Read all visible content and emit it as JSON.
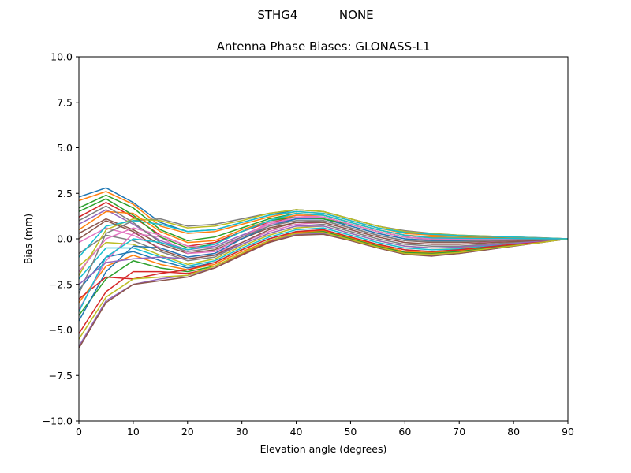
{
  "figure": {
    "suptitle": "STHG4           NONE"
  },
  "chart_data": {
    "type": "line",
    "title": "Antenna Phase Biases: GLONASS-L1",
    "xlabel": "Elevation angle (degrees)",
    "ylabel": "Bias (mm)",
    "xlim": [
      0,
      90
    ],
    "ylim": [
      -10,
      10
    ],
    "xticks": [
      0,
      10,
      20,
      30,
      40,
      50,
      60,
      70,
      80,
      90
    ],
    "yticks": [
      -10.0,
      -7.5,
      -5.0,
      -2.5,
      0.0,
      2.5,
      5.0,
      7.5,
      10.0
    ],
    "xtick_labels": [
      "0",
      "10",
      "20",
      "30",
      "40",
      "50",
      "60",
      "70",
      "80",
      "90"
    ],
    "ytick_labels": [
      "−10.0",
      "−7.5",
      "−5.0",
      "−2.5",
      "0.0",
      "2.5",
      "5.0",
      "7.5",
      "10.0"
    ],
    "grid": false,
    "x": [
      0,
      5,
      10,
      15,
      20,
      25,
      30,
      35,
      40,
      45,
      50,
      55,
      60,
      65,
      70,
      75,
      80,
      85,
      90
    ],
    "colors": [
      "#1f77b4",
      "#ff7f0e",
      "#2ca02c",
      "#d62728",
      "#9467bd",
      "#8c564b",
      "#e377c2",
      "#7f7f7f",
      "#bcbd22",
      "#17becf"
    ],
    "series": [
      {
        "values": [
          2.3,
          2.8,
          2.0,
          0.9,
          0.4,
          0.5,
          0.9,
          1.3,
          1.6,
          1.5,
          1.1,
          0.7,
          0.4,
          0.25,
          0.18,
          0.14,
          0.1,
          0.06,
          0.0
        ]
      },
      {
        "values": [
          2.1,
          2.6,
          1.9,
          0.7,
          0.3,
          0.4,
          0.8,
          1.2,
          1.5,
          1.4,
          1.0,
          0.6,
          0.3,
          0.2,
          0.15,
          0.12,
          0.08,
          0.05,
          0.0
        ]
      },
      {
        "values": [
          1.7,
          2.4,
          1.7,
          0.5,
          -0.1,
          0.1,
          0.6,
          1.1,
          1.4,
          1.3,
          0.9,
          0.5,
          0.2,
          0.1,
          0.08,
          0.06,
          0.05,
          0.03,
          0.0
        ]
      },
      {
        "values": [
          1.2,
          2.0,
          1.2,
          0.2,
          -0.4,
          -0.2,
          0.4,
          0.9,
          1.2,
          1.2,
          0.8,
          0.4,
          0.1,
          0.0,
          -0.02,
          -0.02,
          -0.01,
          0.0,
          0.0
        ]
      },
      {
        "values": [
          0.8,
          1.6,
          0.8,
          -0.1,
          -0.6,
          -0.4,
          0.2,
          0.8,
          1.1,
          1.1,
          0.7,
          0.3,
          0.0,
          -0.1,
          -0.1,
          -0.08,
          -0.05,
          -0.02,
          0.0
        ]
      },
      {
        "values": [
          0.3,
          1.1,
          0.5,
          -0.3,
          -0.8,
          -0.6,
          0.0,
          0.6,
          0.9,
          1.0,
          0.6,
          0.2,
          -0.1,
          -0.2,
          -0.2,
          -0.15,
          -0.1,
          -0.05,
          0.0
        ]
      },
      {
        "values": [
          -0.2,
          0.6,
          0.2,
          -0.5,
          -1.0,
          -0.8,
          -0.2,
          0.4,
          0.8,
          0.9,
          0.5,
          0.1,
          -0.2,
          -0.3,
          -0.3,
          -0.2,
          -0.15,
          -0.08,
          0.0
        ]
      },
      {
        "values": [
          -0.8,
          0.2,
          -0.1,
          -0.7,
          -1.2,
          -1.0,
          -0.3,
          0.3,
          0.7,
          0.8,
          0.4,
          0.0,
          -0.3,
          -0.4,
          -0.4,
          -0.3,
          -0.2,
          -0.1,
          0.0
        ]
      },
      {
        "values": [
          -1.5,
          -0.2,
          -0.3,
          -0.9,
          -1.4,
          -1.1,
          -0.4,
          0.2,
          0.6,
          0.7,
          0.3,
          -0.1,
          -0.4,
          -0.5,
          -0.5,
          -0.35,
          -0.25,
          -0.12,
          0.0
        ]
      },
      {
        "values": [
          -2.2,
          -0.5,
          -0.5,
          -1.0,
          -1.5,
          -1.2,
          -0.5,
          0.1,
          0.5,
          0.6,
          0.2,
          -0.2,
          -0.5,
          -0.6,
          -0.55,
          -0.4,
          -0.3,
          -0.15,
          0.0
        ]
      },
      {
        "values": [
          -2.8,
          -1.0,
          -0.7,
          -1.2,
          -1.6,
          -1.3,
          -0.6,
          0.0,
          0.4,
          0.5,
          0.1,
          -0.3,
          -0.6,
          -0.7,
          -0.6,
          -0.45,
          -0.32,
          -0.16,
          0.0
        ]
      },
      {
        "values": [
          -3.5,
          -1.5,
          -0.9,
          -1.4,
          -1.7,
          -1.4,
          -0.7,
          -0.1,
          0.35,
          0.45,
          0.05,
          -0.35,
          -0.7,
          -0.75,
          -0.65,
          -0.5,
          -0.35,
          -0.18,
          0.0
        ]
      },
      {
        "values": [
          -4.2,
          -2.2,
          -1.2,
          -1.6,
          -1.8,
          -1.5,
          -0.8,
          -0.1,
          0.3,
          0.4,
          0.0,
          -0.4,
          -0.75,
          -0.8,
          -0.7,
          -0.52,
          -0.36,
          -0.19,
          0.0
        ]
      },
      {
        "values": [
          -5.2,
          -2.9,
          -1.8,
          -1.8,
          -1.9,
          -1.6,
          -0.85,
          -0.15,
          0.3,
          0.35,
          -0.05,
          -0.45,
          -0.8,
          -0.85,
          -0.75,
          -0.55,
          -0.38,
          -0.2,
          0.0
        ]
      },
      {
        "values": [
          -5.9,
          -3.4,
          -2.5,
          -2.2,
          -2.0,
          -1.6,
          -0.9,
          -0.2,
          0.25,
          0.3,
          -0.1,
          -0.5,
          -0.85,
          -0.9,
          -0.8,
          -0.6,
          -0.4,
          -0.2,
          0.0
        ]
      },
      {
        "values": [
          -6.0,
          -3.5,
          -2.5,
          -2.3,
          -2.1,
          -1.6,
          -0.9,
          -0.2,
          0.2,
          0.25,
          -0.1,
          -0.5,
          -0.85,
          -0.95,
          -0.8,
          -0.6,
          -0.4,
          -0.2,
          0.0
        ]
      },
      {
        "values": [
          -3.9,
          -1.2,
          0.3,
          0.1,
          -0.8,
          -0.7,
          0.1,
          0.9,
          1.3,
          1.2,
          0.8,
          0.4,
          0.1,
          -0.05,
          -0.05,
          -0.04,
          -0.03,
          -0.02,
          0.0
        ]
      },
      {
        "values": [
          -3.0,
          0.3,
          1.0,
          1.1,
          0.7,
          0.8,
          1.1,
          1.4,
          1.6,
          1.5,
          1.1,
          0.7,
          0.45,
          0.3,
          0.2,
          0.15,
          0.1,
          0.05,
          0.0
        ]
      },
      {
        "values": [
          -2.0,
          0.5,
          1.1,
          1.0,
          0.6,
          0.7,
          1.0,
          1.4,
          1.6,
          1.5,
          1.1,
          0.7,
          0.4,
          0.28,
          0.2,
          0.15,
          0.1,
          0.05,
          0.0
        ]
      },
      {
        "values": [
          -1.0,
          0.7,
          1.0,
          0.8,
          0.4,
          0.5,
          0.9,
          1.3,
          1.5,
          1.4,
          1.0,
          0.6,
          0.35,
          0.25,
          0.18,
          0.14,
          0.1,
          0.05,
          0.0
        ]
      },
      {
        "values": [
          -4.5,
          -1.8,
          -0.4,
          -0.5,
          -1.0,
          -0.8,
          0.0,
          0.7,
          1.1,
          1.1,
          0.7,
          0.3,
          0.0,
          -0.1,
          -0.1,
          -0.08,
          -0.05,
          -0.03,
          0.0
        ]
      },
      {
        "values": [
          0.5,
          1.5,
          1.4,
          0.4,
          -0.2,
          -0.1,
          0.5,
          1.0,
          1.3,
          1.3,
          0.9,
          0.5,
          0.2,
          0.1,
          0.06,
          0.05,
          0.04,
          0.02,
          0.0
        ]
      },
      {
        "values": [
          1.5,
          2.2,
          1.3,
          0.1,
          -0.5,
          -0.3,
          0.4,
          1.0,
          1.2,
          1.1,
          0.8,
          0.4,
          0.1,
          0.0,
          0.0,
          0.0,
          0.0,
          0.0,
          0.0
        ]
      },
      {
        "values": [
          -3.3,
          -2.1,
          -2.2,
          -1.9,
          -1.7,
          -1.3,
          -0.6,
          0.0,
          0.4,
          0.5,
          0.1,
          -0.3,
          -0.6,
          -0.7,
          -0.6,
          -0.45,
          -0.3,
          -0.15,
          0.0
        ]
      },
      {
        "values": [
          -2.5,
          -1.3,
          -1.1,
          -1.0,
          -1.1,
          -0.9,
          -0.3,
          0.3,
          0.7,
          0.7,
          0.3,
          -0.1,
          -0.4,
          -0.5,
          -0.45,
          -0.35,
          -0.25,
          -0.12,
          0.0
        ]
      },
      {
        "values": [
          0.0,
          1.0,
          0.4,
          -0.6,
          -1.1,
          -0.9,
          -0.2,
          0.5,
          0.9,
          0.9,
          0.5,
          0.1,
          -0.2,
          -0.3,
          -0.3,
          -0.22,
          -0.15,
          -0.08,
          0.0
        ]
      },
      {
        "values": [
          -1.8,
          0.0,
          0.6,
          0.2,
          -0.4,
          -0.5,
          0.1,
          0.8,
          1.2,
          1.2,
          0.8,
          0.4,
          0.1,
          0.0,
          -0.02,
          -0.02,
          -0.01,
          0.0,
          0.0
        ]
      },
      {
        "values": [
          1.0,
          1.8,
          0.9,
          -0.2,
          -0.7,
          -0.5,
          0.1,
          0.7,
          1.0,
          1.0,
          0.6,
          0.2,
          -0.1,
          -0.15,
          -0.15,
          -0.1,
          -0.06,
          -0.03,
          0.0
        ]
      },
      {
        "values": [
          -5.5,
          -3.2,
          -2.2,
          -2.1,
          -2.0,
          -1.5,
          -0.8,
          -0.1,
          0.3,
          0.35,
          -0.05,
          -0.45,
          -0.8,
          -0.85,
          -0.75,
          -0.55,
          -0.38,
          -0.2,
          0.0
        ]
      },
      {
        "values": [
          -4.0,
          -1.0,
          0.0,
          -0.2,
          -0.6,
          -0.3,
          0.4,
          1.0,
          1.4,
          1.3,
          0.9,
          0.5,
          0.2,
          0.05,
          0.03,
          0.02,
          0.02,
          0.01,
          0.0
        ]
      }
    ]
  }
}
